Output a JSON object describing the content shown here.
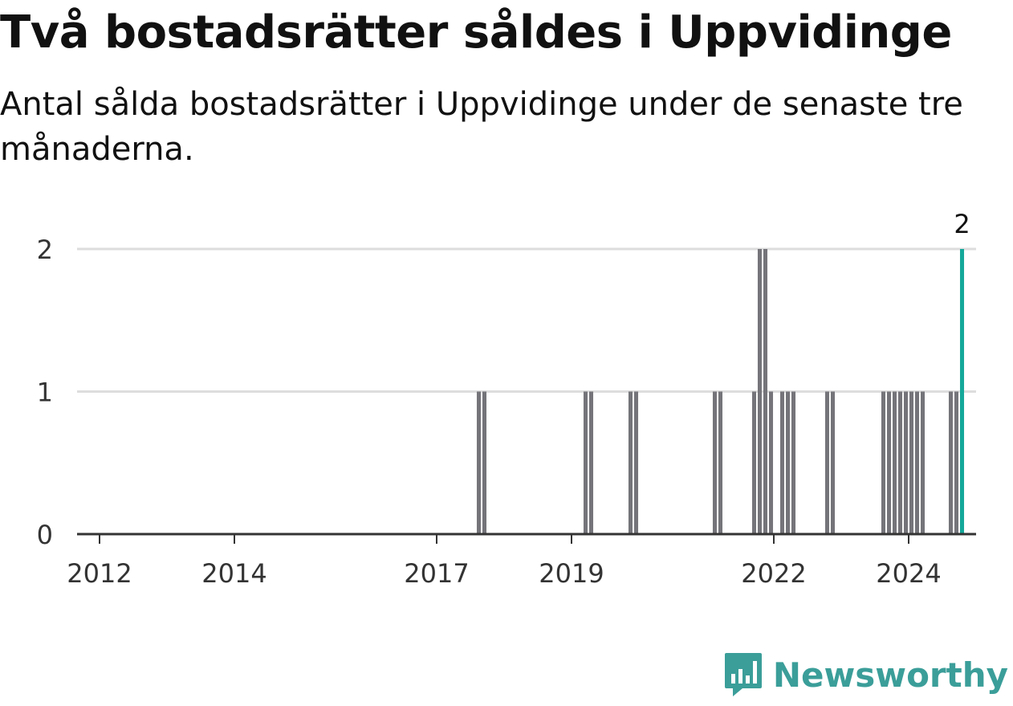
{
  "title": "Två bostadsrätter såldes i Uppvidinge",
  "subtitle": "Antal sålda bostadsrätter i Uppvidinge under de senaste tre månaderna.",
  "brand": {
    "name": "Newsworthy",
    "color": "#3b9e99",
    "icon": "newsworthy-logo-icon"
  },
  "colors": {
    "bar": "#74747a",
    "highlight": "#14a89a",
    "grid": "#dddddd",
    "axis": "#333333"
  },
  "chart_data": {
    "type": "bar",
    "x_type": "month",
    "xlim": [
      "2011-09",
      "2025-01"
    ],
    "ylim": [
      0,
      2
    ],
    "y_ticks": [
      0,
      1,
      2
    ],
    "x_ticks": [
      "2012",
      "2014",
      "2017",
      "2019",
      "2022",
      "2024"
    ],
    "grid": true,
    "series": [
      {
        "points": [
          {
            "x": "2017-08",
            "y": 1
          },
          {
            "x": "2017-09",
            "y": 1
          },
          {
            "x": "2019-03",
            "y": 1
          },
          {
            "x": "2019-04",
            "y": 1
          },
          {
            "x": "2019-11",
            "y": 1
          },
          {
            "x": "2019-12",
            "y": 1
          },
          {
            "x": "2021-02",
            "y": 1
          },
          {
            "x": "2021-03",
            "y": 1
          },
          {
            "x": "2021-09",
            "y": 1
          },
          {
            "x": "2021-10",
            "y": 2
          },
          {
            "x": "2021-11",
            "y": 2
          },
          {
            "x": "2021-12",
            "y": 1
          },
          {
            "x": "2022-02",
            "y": 1
          },
          {
            "x": "2022-03",
            "y": 1
          },
          {
            "x": "2022-04",
            "y": 1
          },
          {
            "x": "2022-10",
            "y": 1
          },
          {
            "x": "2022-11",
            "y": 1
          },
          {
            "x": "2023-08",
            "y": 1
          },
          {
            "x": "2023-09",
            "y": 1
          },
          {
            "x": "2023-10",
            "y": 1
          },
          {
            "x": "2023-11",
            "y": 1
          },
          {
            "x": "2023-12",
            "y": 1
          },
          {
            "x": "2024-01",
            "y": 1
          },
          {
            "x": "2024-02",
            "y": 1
          },
          {
            "x": "2024-03",
            "y": 1
          },
          {
            "x": "2024-08",
            "y": 1
          },
          {
            "x": "2024-09",
            "y": 1
          }
        ]
      }
    ],
    "highlight": {
      "x": "2024-10",
      "y": 2,
      "label": "2"
    }
  }
}
